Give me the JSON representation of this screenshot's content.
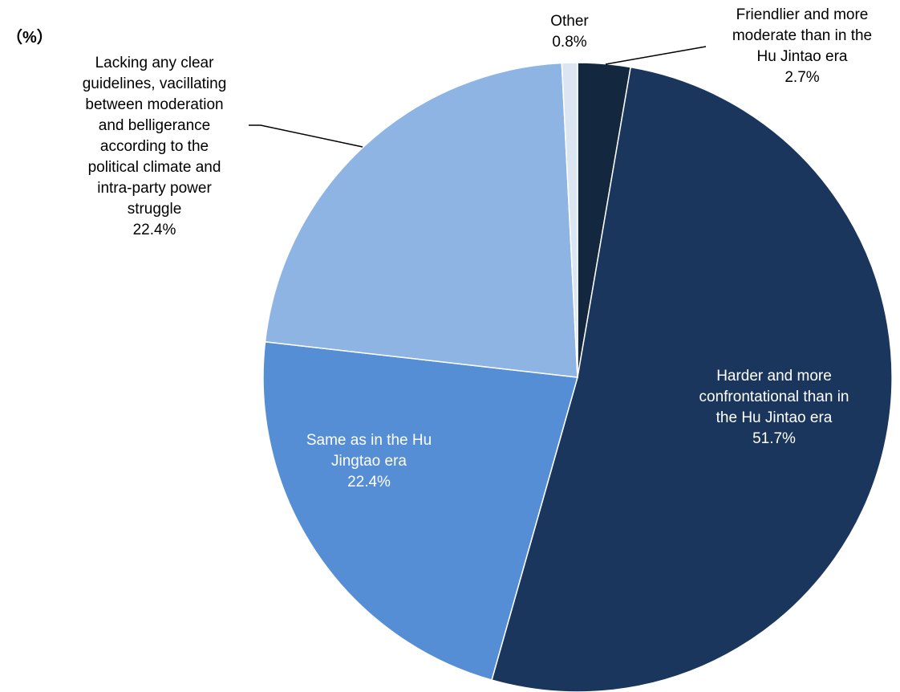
{
  "chart_data": {
    "type": "pie",
    "unit_label": "（%）",
    "start_angle_deg": 0,
    "direction": "clockwise",
    "slices": [
      {
        "key": "friendlier",
        "label_lines": [
          "Friendlier and more",
          "moderate than in the",
          "Hu Jintao era"
        ],
        "value_label": "2.7%",
        "value": 2.7,
        "color": "#13273f",
        "label_color": "#000000",
        "leader_line": true
      },
      {
        "key": "harder",
        "label_lines": [
          "Harder and more",
          "confrontational than in",
          "the Hu Jintao era"
        ],
        "value_label": "51.7%",
        "value": 51.7,
        "color": "#1a365c",
        "label_color": "#ffffff",
        "leader_line": false
      },
      {
        "key": "same",
        "label_lines": [
          "Same as in the Hu",
          "Jingtao era"
        ],
        "value_label": "22.4%",
        "value": 22.4,
        "color": "#558ed5",
        "label_color": "#ffffff",
        "leader_line": false
      },
      {
        "key": "lacking",
        "label_lines": [
          "Lacking any clear",
          "guidelines, vacillating",
          "between moderation",
          "and belligerance",
          "according to the",
          "political climate and",
          "intra-party power",
          "struggle"
        ],
        "value_label": "22.4%",
        "value": 22.4,
        "color": "#8eb4e3",
        "label_color": "#000000",
        "leader_line": true
      },
      {
        "key": "other",
        "label_lines": [
          "Other"
        ],
        "value_label": "0.8%",
        "value": 0.8,
        "color": "#dce6f2",
        "label_color": "#000000",
        "leader_line": false
      }
    ]
  }
}
